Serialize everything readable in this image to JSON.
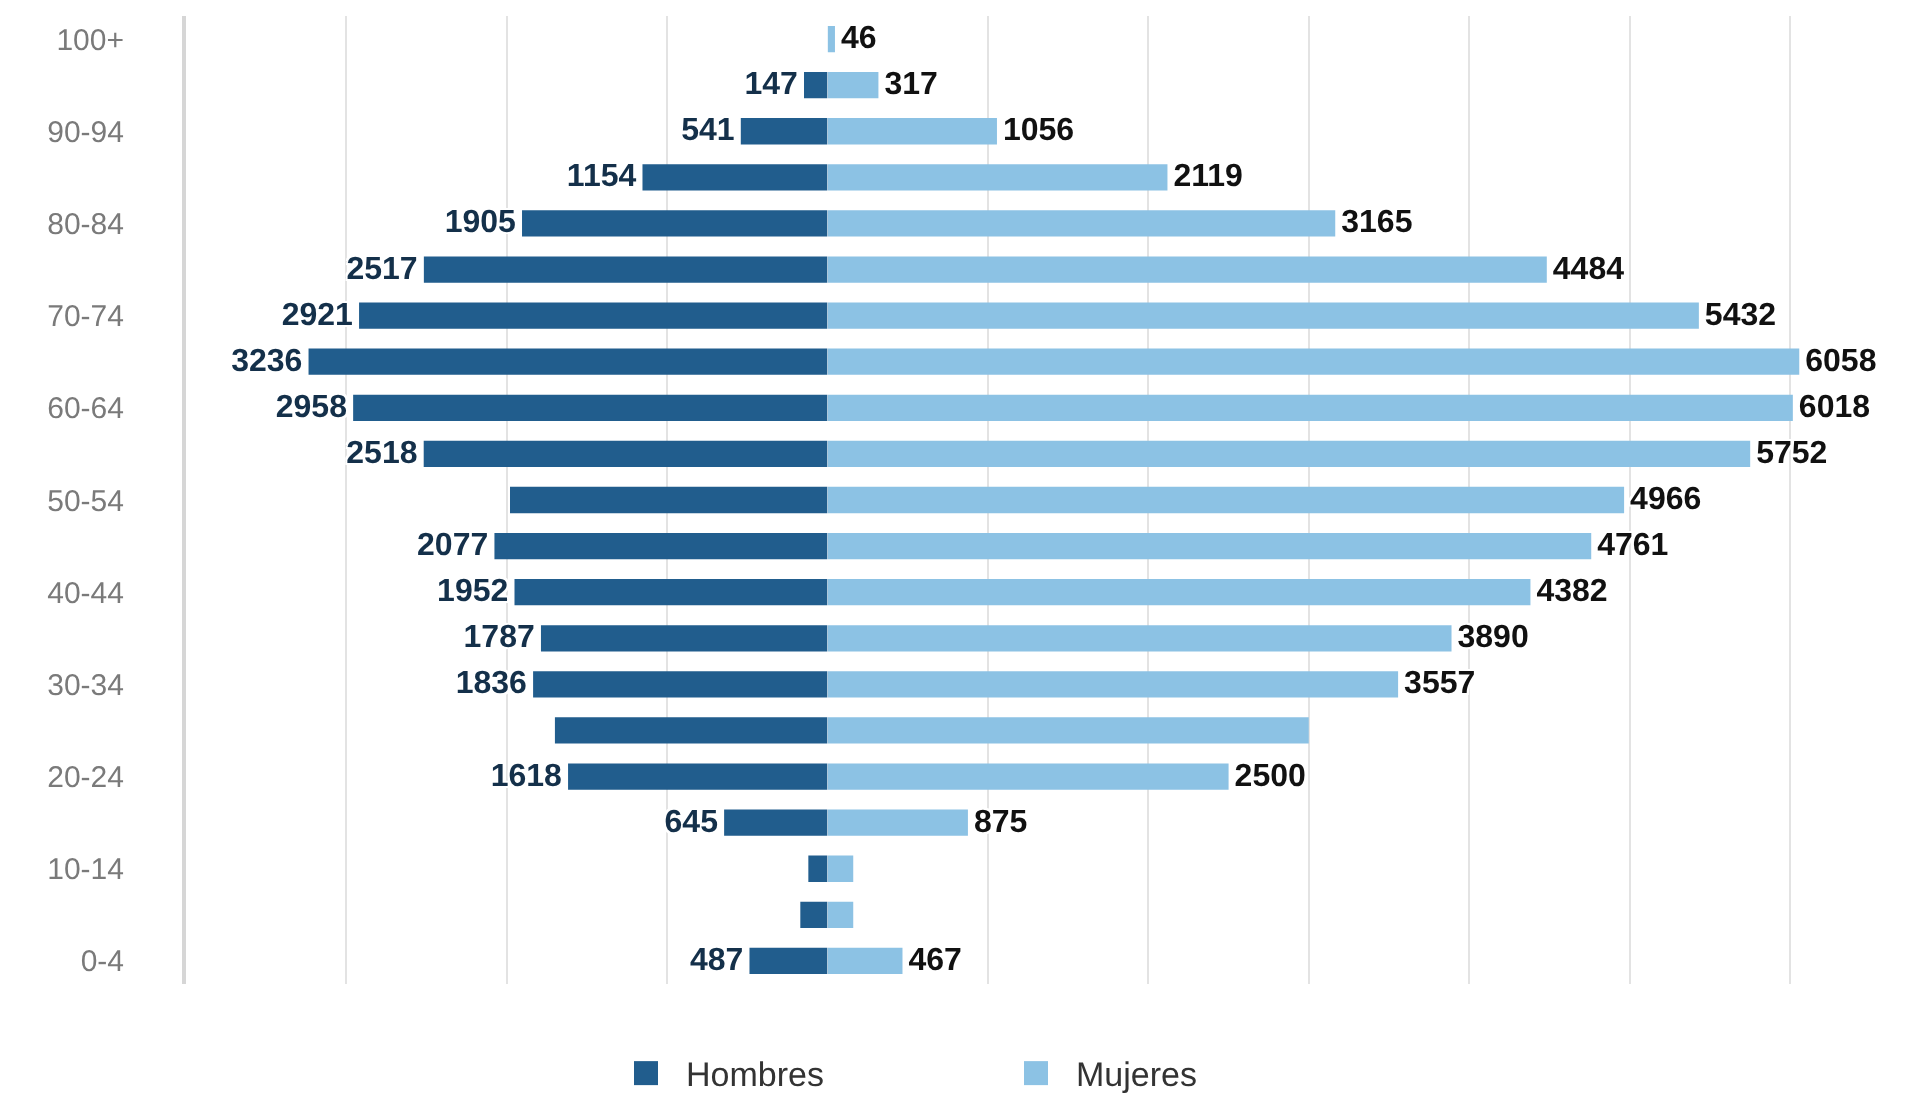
{
  "chart_data": [
    {
      "type": "bar",
      "orientation": "horizontal",
      "categories": [
        "100+",
        null,
        "90-94",
        null,
        "80-84",
        null,
        "70-74",
        null,
        "60-64",
        null,
        "50-54",
        null,
        "40-44",
        null,
        "30-34",
        null,
        "20-24",
        null,
        "10-14",
        null,
        "0-4"
      ],
      "series": [
        {
          "name": "Hombres",
          "color": "#215d8d",
          "values": [
            null,
            147,
            541,
            1154,
            1905,
            2517,
            2921,
            3236,
            2958,
            2518,
            1980,
            2077,
            1952,
            1787,
            1836,
            1700,
            1618,
            645,
            120,
            170,
            487
          ],
          "value_labels": [
            null,
            "147",
            "541",
            "1154",
            "1905",
            "2517",
            "2921",
            "3236",
            "2958",
            "2518",
            null,
            "2077",
            "1952",
            "1787",
            "1836",
            null,
            "1618",
            "645",
            null,
            null,
            "487"
          ]
        }
      ],
      "xlim": [
        4000,
        0
      ],
      "xticks": [
        {
          "value": 4000,
          "label": null
        },
        {
          "value": 3000,
          "label": null
        },
        {
          "value": 2000,
          "label": null
        },
        {
          "value": 1000,
          "label": null
        }
      ],
      "tick_labels": "y",
      "grid": "x",
      "legend": "bottom"
    },
    {
      "type": "bar",
      "orientation": "horizontal",
      "categories": [
        null,
        null,
        null,
        null,
        null,
        null,
        null,
        null,
        null,
        null,
        null,
        null,
        null,
        null,
        null,
        null,
        null,
        null,
        null,
        null,
        null
      ],
      "series": [
        {
          "name": "Mujeres",
          "color": "#8cc2e4",
          "values": [
            46,
            317,
            1056,
            2119,
            3165,
            4484,
            5432,
            6058,
            6018,
            5752,
            4966,
            4761,
            4382,
            3890,
            3557,
            3000,
            2500,
            875,
            160,
            160,
            467
          ],
          "value_labels": [
            "46",
            "317",
            "1056",
            "2119",
            "3165",
            "4484",
            "5432",
            "6058",
            "6018",
            "5752",
            "4966",
            "4761",
            "4382",
            "3890",
            "3557",
            null,
            "2500",
            "875",
            null,
            null,
            "467"
          ]
        }
      ],
      "xlim": [
        0,
        6100
      ],
      "xticks": [
        {
          "value": 1000,
          "label": null
        },
        {
          "value": 2000,
          "label": null
        },
        {
          "value": 3000,
          "label": null
        },
        {
          "value": 4000,
          "label": null
        },
        {
          "value": 5000,
          "label": null
        },
        {
          "value": 6000,
          "label": null
        }
      ],
      "grid": "x",
      "legend": "bottom"
    }
  ]
}
